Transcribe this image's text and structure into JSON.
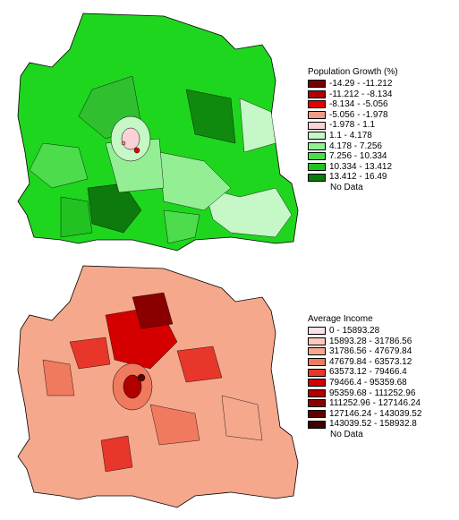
{
  "growth": {
    "title": "Population Growth (%)",
    "classes": [
      {
        "label": "-14.29 - -11.212",
        "color": "#7a0000"
      },
      {
        "label": "-11.212 - -8.134",
        "color": "#b00000"
      },
      {
        "label": "-8.134 - -5.056",
        "color": "#e60000"
      },
      {
        "label": "-5.056 - -1.978",
        "color": "#f29a8a"
      },
      {
        "label": "-1.978 - 1.1",
        "color": "#fbd0d6"
      },
      {
        "label": "1.1 - 4.178",
        "color": "#c6f7c6"
      },
      {
        "label": "4.178 - 7.256",
        "color": "#94ee94"
      },
      {
        "label": "7.256 - 10.334",
        "color": "#4cdc4c"
      },
      {
        "label": "10.334 - 13.412",
        "color": "#22c222"
      },
      {
        "label": "13.412 - 16.49",
        "color": "#0c7a0c"
      }
    ],
    "nodata_label": "No Data"
  },
  "income": {
    "title": "Average Income",
    "classes": [
      {
        "label": "0 - 15893.28",
        "color": "#fbe0ee"
      },
      {
        "label": "15893.28 - 31786.56",
        "color": "#fbc8c0"
      },
      {
        "label": "31786.56 - 47679.84",
        "color": "#f5a88c"
      },
      {
        "label": "47679.84 - 63573.12",
        "color": "#ef7a5e"
      },
      {
        "label": "63573.12 - 79466.4",
        "color": "#e8362a"
      },
      {
        "label": "79466.4 - 95359.68",
        "color": "#d40000"
      },
      {
        "label": "95359.68 - 111252.96",
        "color": "#b00000"
      },
      {
        "label": "111252.96 - 127146.24",
        "color": "#8a0000"
      },
      {
        "label": "127146.24 - 143039.52",
        "color": "#620000"
      },
      {
        "label": "143039.52 - 158932.8",
        "color": "#3c0000"
      }
    ],
    "nodata_label": "No Data"
  }
}
